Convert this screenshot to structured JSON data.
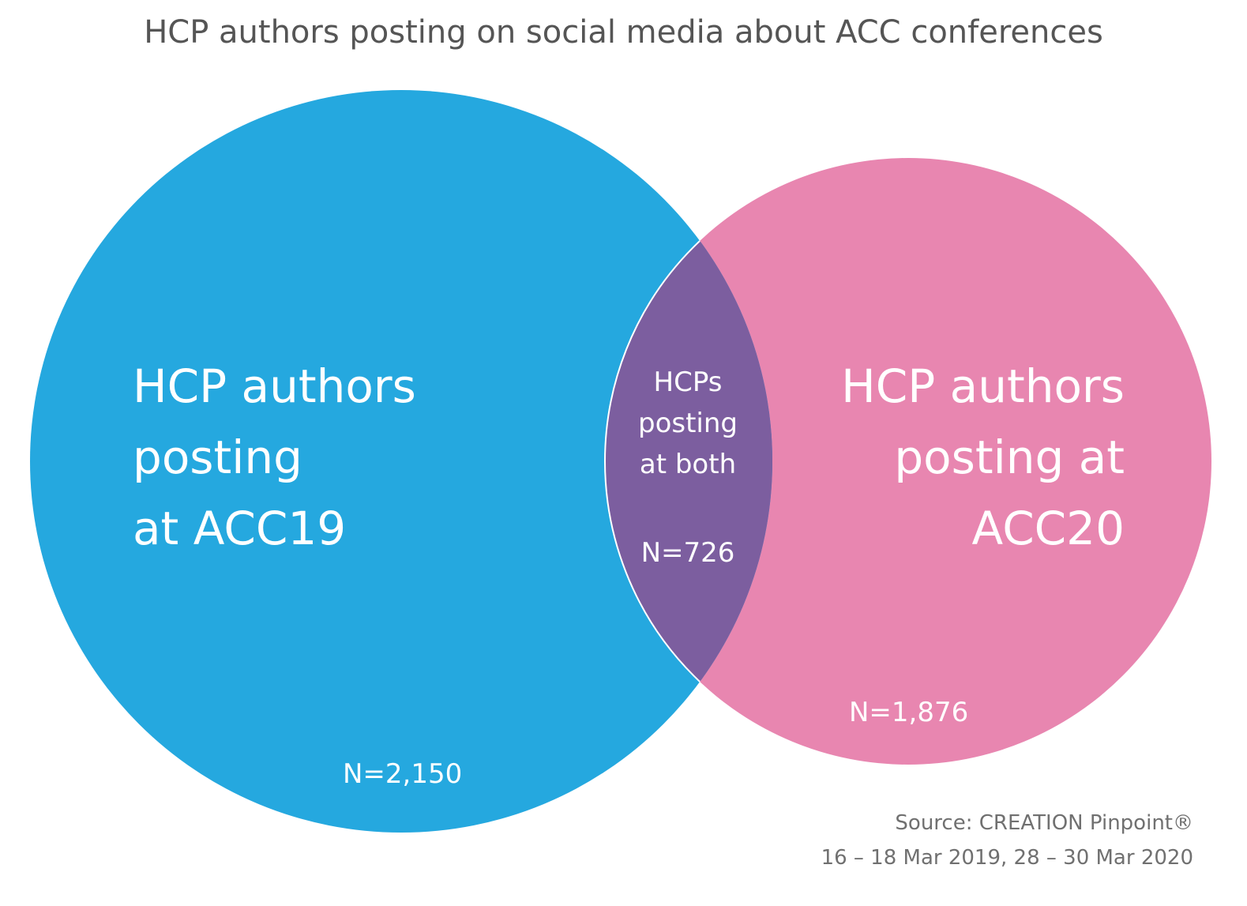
{
  "title": "HCP authors posting on social media about ACC conferences",
  "colors": {
    "acc19": "#25a8df",
    "acc20": "#e886b0",
    "overlap": "#7c5e9f",
    "divider": "#ffffff"
  },
  "sets": {
    "acc19": {
      "label_lines": [
        "HCP authors",
        "posting",
        "at ACC19"
      ],
      "count": "N=2,150"
    },
    "acc20": {
      "label_lines": [
        "HCP authors",
        "posting at",
        "ACC20"
      ],
      "count": "N=1,876"
    },
    "both": {
      "label_lines": [
        "HCPs",
        "posting",
        "at both"
      ],
      "count": "N=726"
    }
  },
  "source": {
    "line1": "Source: CREATION Pinpoint®",
    "line2": "16 – 18 Mar 2019, 28 – 30 Mar 2020"
  }
}
